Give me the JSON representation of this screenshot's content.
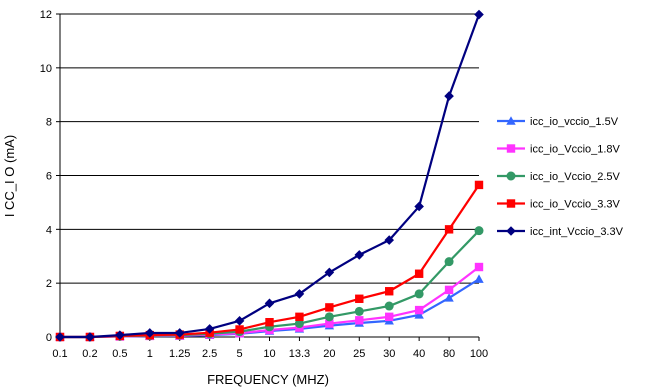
{
  "chart_data": {
    "type": "line",
    "xlabel": "FREQUENCY (MHZ)",
    "ylabel": "I CC_I O (mA)",
    "categories": [
      "0.1",
      "0.2",
      "0.5",
      "1",
      "1.25",
      "2.5",
      "5",
      "10",
      "13.3",
      "20",
      "25",
      "30",
      "40",
      "80",
      "100"
    ],
    "ylim": [
      0,
      12
    ],
    "yticks": [
      "0",
      "2",
      "4",
      "6",
      "8",
      "10",
      "12"
    ],
    "grid": "horizontal",
    "legend": "right",
    "series": [
      {
        "name": "icc_io_vccio_1.5V",
        "color": "#3366ff",
        "marker": "triangle",
        "values": [
          0.0,
          0.0,
          0.02,
          0.03,
          0.04,
          0.07,
          0.12,
          0.22,
          0.3,
          0.42,
          0.52,
          0.6,
          0.82,
          1.45,
          2.15
        ]
      },
      {
        "name": "icc_io_Vccio_1.8V",
        "color": "#ff33ff",
        "marker": "square",
        "values": [
          0.0,
          0.0,
          0.02,
          0.04,
          0.05,
          0.09,
          0.14,
          0.26,
          0.35,
          0.5,
          0.62,
          0.75,
          1.0,
          1.75,
          2.6
        ]
      },
      {
        "name": "icc_io_Vccio_2.5V",
        "color": "#339966",
        "marker": "circle",
        "values": [
          0.0,
          0.0,
          0.03,
          0.05,
          0.07,
          0.12,
          0.2,
          0.38,
          0.5,
          0.75,
          0.95,
          1.15,
          1.6,
          2.8,
          3.95
        ]
      },
      {
        "name": "icc_io_Vccio_3.3V",
        "color": "#ff0000",
        "marker": "square",
        "values": [
          0.0,
          0.0,
          0.04,
          0.07,
          0.09,
          0.16,
          0.28,
          0.55,
          0.75,
          1.1,
          1.42,
          1.7,
          2.35,
          4.0,
          5.65
        ]
      },
      {
        "name": "icc_int_Vccio_3.3V",
        "color": "#000080",
        "marker": "diamond",
        "values": [
          0.0,
          0.0,
          0.07,
          0.15,
          0.15,
          0.3,
          0.6,
          1.25,
          1.6,
          2.4,
          3.05,
          3.6,
          4.85,
          8.95,
          11.98
        ]
      }
    ]
  }
}
